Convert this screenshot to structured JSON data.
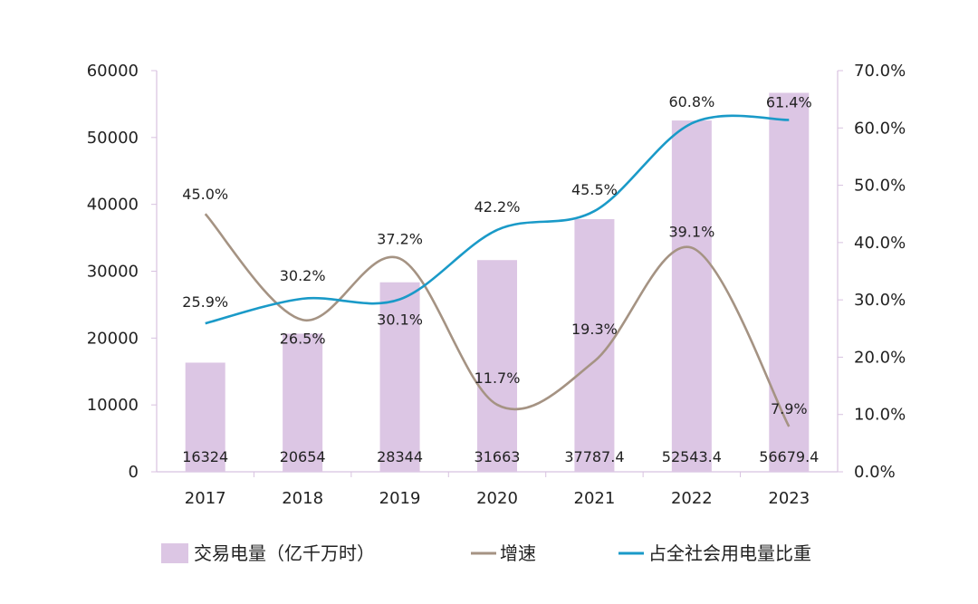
{
  "chart_data": {
    "type": "bar",
    "categories": [
      "2017",
      "2018",
      "2019",
      "2020",
      "2021",
      "2022",
      "2023"
    ],
    "series": [
      {
        "name": "交易电量（亿千万时）",
        "type": "bar",
        "axis": "left",
        "values": [
          16324,
          20654,
          28344,
          31663,
          37787.4,
          52543.4,
          56679.4
        ],
        "labels": [
          "16324",
          "20654",
          "28344",
          "31663",
          "37787.4",
          "52543.4",
          "56679.4"
        ],
        "color": "#dcc6e4"
      },
      {
        "name": "增速",
        "type": "line",
        "axis": "right",
        "values": [
          45.0,
          26.5,
          37.2,
          11.7,
          19.3,
          39.1,
          7.9
        ],
        "labels": [
          "45.0%",
          "26.5%",
          "37.2%",
          "11.7%",
          "19.3%",
          "39.1%",
          "7.9%"
        ],
        "color": "#a59383"
      },
      {
        "name": "占全社会用电量比重",
        "type": "line",
        "axis": "right",
        "values": [
          25.9,
          30.2,
          30.1,
          42.2,
          45.5,
          60.8,
          61.4
        ],
        "labels": [
          "25.9%",
          "30.2%",
          "30.1%",
          "42.2%",
          "45.5%",
          "60.8%",
          "61.4%"
        ],
        "color": "#1a9ac8"
      }
    ],
    "y_left": {
      "min": 0,
      "max": 60000,
      "ticks": [
        "0",
        "10000",
        "20000",
        "30000",
        "40000",
        "50000",
        "60000"
      ]
    },
    "y_right": {
      "min": 0,
      "max": 70,
      "ticks": [
        "0.0%",
        "10.0%",
        "20.0%",
        "30.0%",
        "40.0%",
        "50.0%",
        "60.0%",
        "70.0%"
      ]
    },
    "grid": false,
    "legend_position": "bottom"
  }
}
